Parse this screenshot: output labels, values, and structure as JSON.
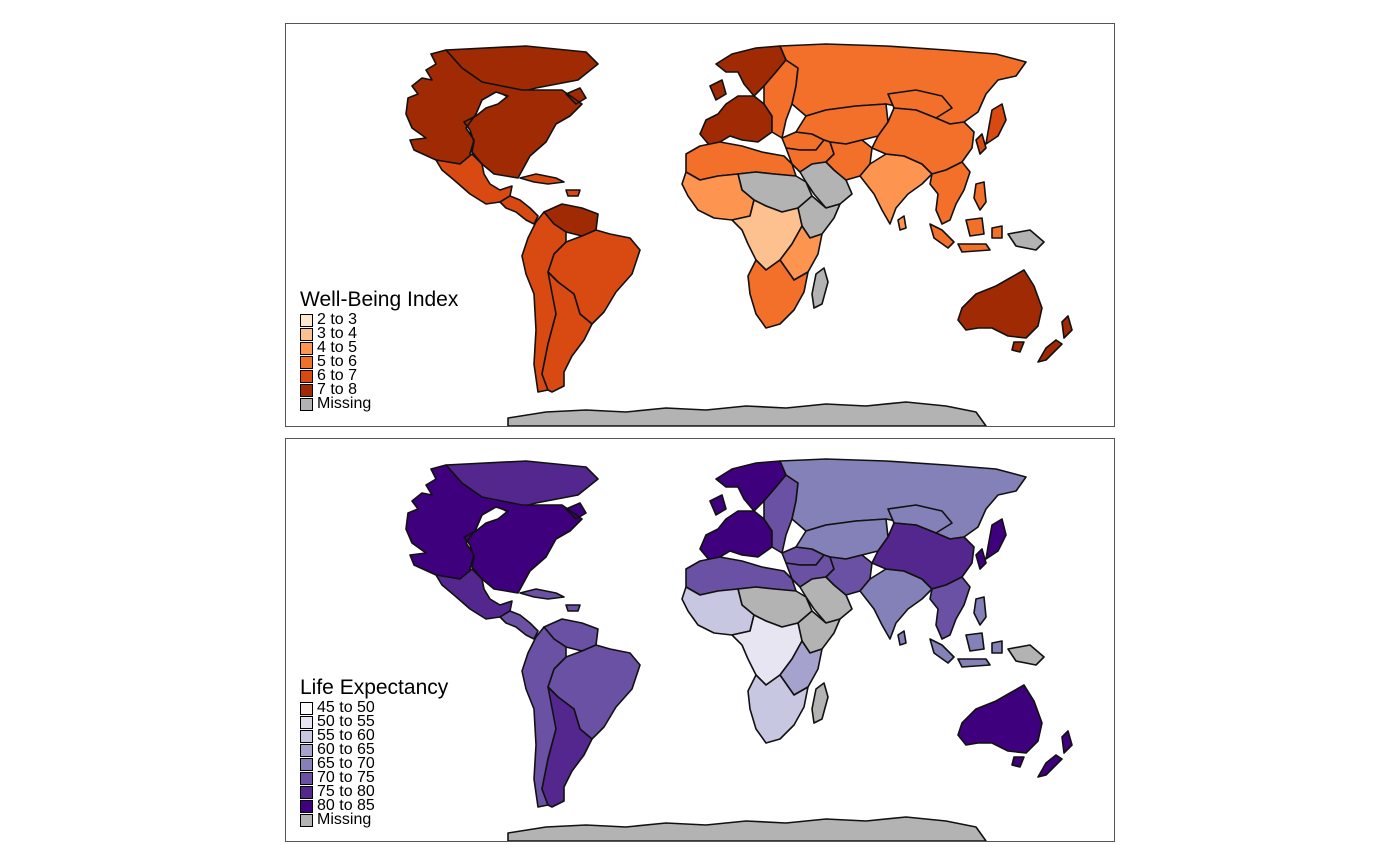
{
  "maps": [
    {
      "id": "wellbeing",
      "legend_title": "Well-Being Index",
      "legend": [
        {
          "label": "2 to 3",
          "color": "#fee6ce"
        },
        {
          "label": "3 to 4",
          "color": "#fdc08f"
        },
        {
          "label": "4 to 5",
          "color": "#fd9550"
        },
        {
          "label": "5 to 6",
          "color": "#f3702b"
        },
        {
          "label": "6 to 7",
          "color": "#d84a11"
        },
        {
          "label": "7 to 8",
          "color": "#a02a04"
        },
        {
          "label": "Missing",
          "color": "#b3b3b3"
        }
      ],
      "region_classes": {
        "north-america": "7 to 8",
        "greenland": "7 to 8",
        "mexico": "6 to 7",
        "central-america": "6 to 7",
        "caribbean": "6 to 7",
        "venezuela": "7 to 8",
        "brazil": "6 to 7",
        "andes": "6 to 7",
        "argentina": "6 to 7",
        "europe-north": "7 to 8",
        "europe-west": "7 to 8",
        "europe-east": "5 to 6",
        "russia": "5 to 6",
        "turkey": "5 to 6",
        "central-asia": "5 to 6",
        "middle-east": "5 to 6",
        "arabia": "Missing",
        "north-africa": "5 to 6",
        "sahel": "Missing",
        "west-africa": "4 to 5",
        "horn-of-africa": "Missing",
        "central-africa": "3 to 4",
        "east-africa": "4 to 5",
        "southern-africa": "5 to 6",
        "madagascar": "Missing",
        "iran": "5 to 6",
        "south-asia": "4 to 5",
        "china": "5 to 6",
        "mongolia": "5 to 6",
        "japan-korea": "6 to 7",
        "southeast-asia": "5 to 6",
        "indonesia": "5 to 6",
        "philippines": "5 to 6",
        "papua": "Missing",
        "australia": "7 to 8",
        "new-zealand": "7 to 8",
        "antarctica": "Missing"
      }
    },
    {
      "id": "lifeexp",
      "legend_title": "Life Expectancy",
      "legend": [
        {
          "label": "45 to 50",
          "color": "#fcfbfd"
        },
        {
          "label": "50 to 55",
          "color": "#e7e5f1"
        },
        {
          "label": "55 to 60",
          "color": "#c8c7e1"
        },
        {
          "label": "60 to 65",
          "color": "#a5a2cd"
        },
        {
          "label": "65 to 70",
          "color": "#8480b8"
        },
        {
          "label": "70 to 75",
          "color": "#6a51a3"
        },
        {
          "label": "75 to 80",
          "color": "#54278f"
        },
        {
          "label": "80 to 85",
          "color": "#3f007d"
        },
        {
          "label": "Missing",
          "color": "#b3b3b3"
        }
      ],
      "region_classes": {
        "north-america": "80 to 85",
        "greenland": "75 to 80",
        "mexico": "75 to 80",
        "central-america": "70 to 75",
        "caribbean": "70 to 75",
        "venezuela": "70 to 75",
        "brazil": "70 to 75",
        "andes": "70 to 75",
        "argentina": "75 to 80",
        "europe-north": "80 to 85",
        "europe-west": "80 to 85",
        "europe-east": "70 to 75",
        "russia": "65 to 70",
        "turkey": "70 to 75",
        "central-asia": "65 to 70",
        "middle-east": "70 to 75",
        "arabia": "Missing",
        "north-africa": "70 to 75",
        "sahel": "Missing",
        "west-africa": "55 to 60",
        "horn-of-africa": "Missing",
        "central-africa": "50 to 55",
        "east-africa": "60 to 65",
        "southern-africa": "55 to 60",
        "madagascar": "Missing",
        "iran": "70 to 75",
        "south-asia": "65 to 70",
        "china": "75 to 80",
        "mongolia": "65 to 70",
        "japan-korea": "80 to 85",
        "southeast-asia": "70 to 75",
        "indonesia": "65 to 70",
        "philippines": "65 to 70",
        "papua": "Missing",
        "australia": "80 to 85",
        "new-zealand": "80 to 85",
        "antarctica": "Missing"
      }
    }
  ]
}
